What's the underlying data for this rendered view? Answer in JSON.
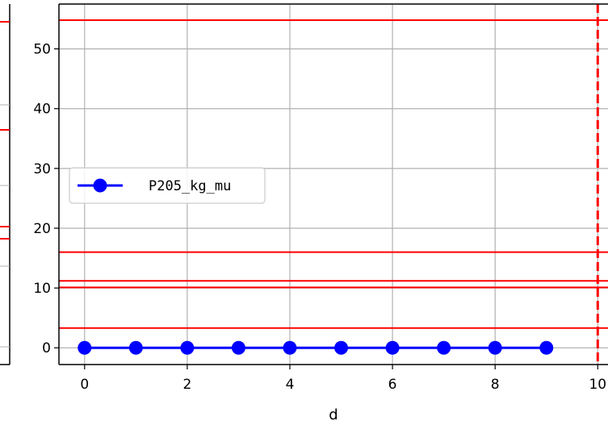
{
  "chart_data": [
    {
      "type": "line",
      "note_partial": "Left panel is cropped; only frame, tick marks and red reference lines are visible.",
      "hlines": [],
      "title": "",
      "xlabel": "",
      "ylabel": ""
    },
    {
      "type": "line",
      "title": "",
      "xlabel": "d",
      "ylabel": "",
      "xlim": [
        -0.5,
        10.2
      ],
      "ylim": [
        -2.8,
        57.5
      ],
      "xticks": [
        0,
        2,
        4,
        6,
        8,
        10
      ],
      "yticks": [
        0,
        10,
        20,
        30,
        40,
        50
      ],
      "xtick_labels": [
        "0",
        "2",
        "4",
        "6",
        "8",
        "10"
      ],
      "ytick_labels": [
        "0",
        "10",
        "20",
        "30",
        "40",
        "50"
      ],
      "grid": true,
      "legend_position": "center-left",
      "series": [
        {
          "name": "P205_kg_mu",
          "color": "#0000ff",
          "marker": "circle",
          "x": [
            0,
            1,
            2,
            3,
            4,
            5,
            6,
            7,
            8,
            9
          ],
          "y": [
            0,
            0,
            0,
            0,
            0,
            0,
            0,
            0,
            0,
            0
          ]
        }
      ],
      "hlines": [
        {
          "y": 54.8,
          "color": "#ff0000",
          "style": "solid"
        },
        {
          "y": 16.0,
          "color": "#ff0000",
          "style": "solid"
        },
        {
          "y": 11.2,
          "color": "#ff0000",
          "style": "solid"
        },
        {
          "y": 10.1,
          "color": "#ff0000",
          "style": "solid"
        },
        {
          "y": 3.3,
          "color": "#ff0000",
          "style": "solid"
        }
      ],
      "vlines": [
        {
          "x": 10,
          "color": "#ff0000",
          "style": "dashed"
        }
      ]
    }
  ]
}
